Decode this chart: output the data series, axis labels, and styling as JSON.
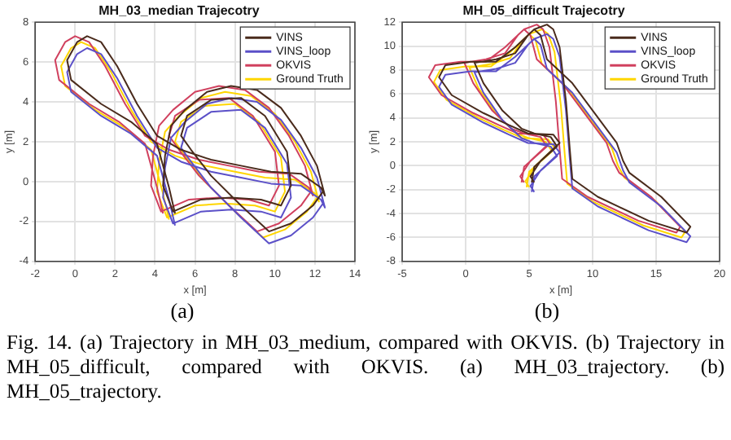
{
  "chart_data": [
    {
      "type": "line",
      "title": "MH_03_median Trajecotry",
      "xlabel": "x [m]",
      "ylabel": "y [m]",
      "xlim": [
        -2,
        14
      ],
      "xticks": [
        -2,
        0,
        2,
        4,
        6,
        8,
        10,
        12,
        14
      ],
      "ylim": [
        -4,
        8
      ],
      "yticks": [
        -4,
        -2,
        0,
        2,
        4,
        6,
        8
      ],
      "grid": true,
      "legend": "top right",
      "marker": "none",
      "line_style": "solid",
      "annotations": [
        "(a)",
        "Fig. 14.    (a) Trajectory in MH_03_medium, compared with OKVIS. (b) Trajectory in MH_05_difficult, compared with OKVIS. (a) MH_03_trajectory. (b) MH_05_trajectory."
      ],
      "series": [
        {
          "name": "VINS",
          "color": "#4a2b1c",
          "x": [
            5.0,
            4.7,
            4.1,
            2.8,
            1.3,
            -0.2,
            -0.4,
            0.1,
            0.6,
            1.3,
            2.1,
            3.1,
            4.1,
            5.3,
            6.8,
            8.3,
            9.8,
            11.3,
            12.3,
            12.5,
            12.1,
            11.3,
            10.3,
            9.1,
            7.8,
            6.6,
            5.5,
            4.8,
            4.5,
            4.4,
            4.9,
            6.3,
            7.8,
            9.3,
            10.3,
            10.8,
            10.6,
            9.5,
            8.3,
            6.8,
            5.6,
            5.3,
            5.8,
            6.8,
            8.3,
            9.7,
            10.8,
            11.9,
            12.4
          ],
          "values": [
            -1.6,
            -0.3,
            1.9,
            3.0,
            3.9,
            5.1,
            6.1,
            7.0,
            7.3,
            7.0,
            5.8,
            3.9,
            2.3,
            1.6,
            1.1,
            0.8,
            0.5,
            0.4,
            -0.3,
            -0.7,
            0.8,
            2.3,
            3.7,
            4.6,
            4.8,
            4.5,
            3.6,
            2.8,
            1.3,
            -0.2,
            -1.5,
            -0.9,
            -0.8,
            -0.9,
            -1.2,
            -0.2,
            1.5,
            3.3,
            4.2,
            4.1,
            3.3,
            2.3,
            1.6,
            0.3,
            -1.2,
            -2.5,
            -2.1,
            -1.2,
            -0.5
          ]
        },
        {
          "name": "VINS_loop",
          "color": "#5b50c8",
          "x": [
            5.0,
            4.7,
            4.1,
            2.8,
            1.3,
            -0.2,
            -0.4,
            0.1,
            0.6,
            1.3,
            2.1,
            3.1,
            4.1,
            5.3,
            6.8,
            8.3,
            9.8,
            11.3,
            12.3,
            12.5,
            12.1,
            11.3,
            10.3,
            9.1,
            7.8,
            6.6,
            5.5,
            4.8,
            4.5,
            4.4,
            4.9,
            6.3,
            7.8,
            9.3,
            10.3,
            10.8,
            10.6,
            9.5,
            8.3,
            6.8,
            5.6,
            5.3,
            5.8,
            6.8,
            8.3,
            9.7,
            10.8,
            11.9,
            12.4
          ],
          "values": [
            -2.2,
            -0.9,
            1.3,
            2.4,
            3.3,
            4.5,
            5.5,
            6.4,
            6.7,
            6.4,
            5.2,
            3.3,
            1.7,
            1.0,
            0.5,
            0.2,
            -0.1,
            -0.2,
            -0.9,
            -1.3,
            0.2,
            1.7,
            3.1,
            4.0,
            4.2,
            3.9,
            3.0,
            2.2,
            0.7,
            -0.8,
            -2.1,
            -1.5,
            -1.4,
            -1.5,
            -1.8,
            -0.8,
            0.9,
            2.7,
            3.6,
            3.5,
            2.7,
            1.7,
            1.0,
            -0.3,
            -1.8,
            -3.1,
            -2.7,
            -1.8,
            -1.1
          ]
        },
        {
          "name": "OKVIS",
          "color": "#d0405e",
          "x": [
            4.4,
            4.1,
            3.5,
            2.2,
            0.7,
            -0.8,
            -1.0,
            -0.5,
            0.0,
            0.7,
            1.5,
            2.5,
            3.5,
            4.7,
            6.2,
            7.7,
            9.2,
            10.7,
            11.7,
            11.9,
            11.5,
            10.7,
            9.7,
            8.5,
            7.2,
            6.0,
            4.9,
            4.2,
            3.9,
            3.8,
            4.3,
            5.7,
            7.2,
            8.7,
            9.7,
            10.2,
            10.0,
            8.9,
            7.7,
            6.2,
            5.0,
            4.7,
            5.2,
            6.2,
            7.7,
            9.1,
            10.2,
            11.3,
            11.8
          ],
          "values": [
            -1.6,
            -0.3,
            1.9,
            3.0,
            3.9,
            5.1,
            6.1,
            7.0,
            7.3,
            7.0,
            5.8,
            3.9,
            2.3,
            1.6,
            1.1,
            0.8,
            0.5,
            0.4,
            -0.3,
            -0.7,
            0.8,
            2.3,
            3.7,
            4.6,
            4.8,
            4.5,
            3.6,
            2.8,
            1.3,
            -0.2,
            -1.5,
            -0.9,
            -0.8,
            -0.9,
            -1.2,
            -0.2,
            1.5,
            3.3,
            4.2,
            4.1,
            3.3,
            2.3,
            1.6,
            0.3,
            -1.2,
            -2.5,
            -2.1,
            -1.2,
            -0.5
          ]
        },
        {
          "name": "Ground Truth",
          "color": "#ffd600",
          "x": [
            4.7,
            4.4,
            3.8,
            2.5,
            1.0,
            -0.5,
            -0.7,
            -0.2,
            0.3,
            1.0,
            1.8,
            2.8,
            3.8,
            5.0,
            6.5,
            8.0,
            9.5,
            11.0,
            12.0,
            12.2,
            11.8,
            11.0,
            10.0,
            8.8,
            7.5,
            6.3,
            5.2,
            4.5,
            4.2,
            4.1,
            4.6,
            6.0,
            7.5,
            9.0,
            10.0,
            10.5,
            10.3,
            9.2,
            8.0,
            6.5,
            5.3,
            5.0,
            5.5,
            6.5,
            8.0,
            9.4,
            10.5,
            11.6,
            12.1
          ],
          "values": [
            -1.9,
            -0.6,
            1.6,
            2.7,
            3.6,
            4.8,
            5.8,
            6.7,
            7.0,
            6.7,
            5.5,
            3.6,
            2.0,
            1.3,
            0.8,
            0.5,
            0.2,
            0.1,
            -0.6,
            -1.0,
            0.5,
            2.0,
            3.4,
            4.3,
            4.5,
            4.2,
            3.3,
            2.5,
            1.0,
            -0.5,
            -1.8,
            -1.2,
            -1.1,
            -1.2,
            -1.5,
            -0.5,
            1.2,
            3.0,
            3.9,
            3.8,
            3.0,
            2.0,
            1.3,
            0.0,
            -1.5,
            -2.8,
            -2.4,
            -1.5,
            -0.8
          ]
        }
      ]
    },
    {
      "type": "line",
      "title": "MH_05_difficult Trajecotry",
      "xlabel": "x [m]",
      "ylabel": "y [m]",
      "xlim": [
        -5,
        20
      ],
      "xticks": [
        -5,
        0,
        5,
        10,
        15,
        20
      ],
      "ylim": [
        -8,
        12
      ],
      "yticks": [
        -8,
        -6,
        -4,
        -2,
        0,
        2,
        4,
        6,
        8,
        10,
        12
      ],
      "grid": true,
      "legend": "top right",
      "marker": "none",
      "line_style": "solid",
      "annotations": [
        "(b)"
      ],
      "series": [
        {
          "name": "VINS",
          "color": "#4a2b1c",
          "x": [
            5.4,
            5.1,
            5.9,
            7.4,
            6.9,
            4.9,
            3.4,
            1.4,
            -1.1,
            -2.1,
            -1.6,
            0.4,
            2.4,
            3.9,
            5.4,
            6.4,
            6.9,
            7.4,
            7.9,
            8.2,
            8.4,
            10.4,
            14.4,
            17.4,
            17.7,
            15.4,
            12.9,
            12.4,
            11.9,
            8.4,
            6.4,
            5.9,
            5.4,
            4.9,
            3.9,
            2.4,
            0.7,
            1.4,
            2.9,
            4.4,
            5.4,
            6.7,
            7.2,
            5.4,
            5.2
          ],
          "values": [
            -1.4,
            -0.9,
            0.4,
            1.9,
            2.6,
            2.7,
            3.4,
            4.4,
            5.9,
            7.4,
            8.4,
            8.7,
            8.7,
            9.9,
            11.4,
            11.8,
            11.4,
            9.9,
            5.4,
            1.4,
            -1.1,
            -2.6,
            -4.6,
            -5.6,
            -5.1,
            -2.6,
            -0.6,
            0.4,
            1.9,
            6.9,
            8.9,
            10.9,
            11.4,
            10.9,
            9.4,
            8.9,
            8.6,
            6.9,
            4.6,
            3.1,
            2.7,
            2.4,
            1.6,
            -0.1,
            -1.4
          ]
        },
        {
          "name": "VINS_loop",
          "color": "#5b50c8",
          "x": [
            5.4,
            5.1,
            5.9,
            7.4,
            6.9,
            4.9,
            3.4,
            1.4,
            -1.1,
            -2.1,
            -1.6,
            0.4,
            2.4,
            3.9,
            5.4,
            6.4,
            6.9,
            7.4,
            7.9,
            8.2,
            8.4,
            10.4,
            14.4,
            17.4,
            17.7,
            15.4,
            12.9,
            12.4,
            11.9,
            8.4,
            6.4,
            5.9,
            5.4,
            4.9,
            3.9,
            2.4,
            0.7,
            1.4,
            2.9,
            4.4,
            5.4,
            6.7,
            7.2,
            5.4,
            5.2
          ],
          "values": [
            -2.2,
            -1.7,
            -0.4,
            1.1,
            1.8,
            1.9,
            2.6,
            3.6,
            5.1,
            6.6,
            7.6,
            7.9,
            7.9,
            9.1,
            10.6,
            11.0,
            10.6,
            9.1,
            4.6,
            0.6,
            -1.9,
            -3.4,
            -5.4,
            -6.4,
            -5.9,
            -3.4,
            -1.4,
            -0.4,
            1.1,
            6.1,
            8.1,
            10.1,
            10.6,
            10.1,
            8.6,
            8.1,
            7.8,
            6.1,
            3.8,
            2.3,
            1.9,
            1.6,
            0.8,
            -0.9,
            -2.2
          ]
        },
        {
          "name": "OKVIS",
          "color": "#d0405e",
          "x": [
            4.6,
            4.3,
            5.1,
            6.6,
            6.1,
            4.1,
            2.6,
            0.6,
            -1.9,
            -2.9,
            -2.4,
            -0.4,
            1.6,
            3.1,
            4.6,
            5.6,
            6.1,
            6.6,
            7.1,
            7.4,
            7.6,
            9.6,
            13.6,
            16.6,
            16.9,
            14.6,
            12.1,
            11.6,
            11.1,
            7.6,
            5.6,
            5.1,
            4.6,
            4.1,
            3.1,
            1.6,
            -0.1,
            0.6,
            2.1,
            3.6,
            4.6,
            5.9,
            6.4,
            4.6,
            4.4
          ],
          "values": [
            -1.4,
            -0.9,
            0.4,
            1.9,
            2.6,
            2.7,
            3.4,
            4.4,
            5.9,
            7.4,
            8.4,
            8.7,
            8.7,
            9.9,
            11.4,
            11.8,
            11.4,
            9.9,
            5.4,
            1.4,
            -1.1,
            -2.6,
            -4.6,
            -5.6,
            -5.1,
            -2.6,
            -0.6,
            0.4,
            1.9,
            6.9,
            8.9,
            10.9,
            11.4,
            10.9,
            9.4,
            8.9,
            8.6,
            6.9,
            4.6,
            3.1,
            2.7,
            2.4,
            1.6,
            -0.1,
            -1.4
          ]
        },
        {
          "name": "Ground Truth",
          "color": "#ffd600",
          "x": [
            5,
            4.7,
            5.5,
            7,
            6.5,
            4.5,
            3,
            1,
            -1.5,
            -2.5,
            -2,
            0,
            2,
            3.5,
            5,
            6,
            6.5,
            7,
            7.5,
            7.8,
            8,
            10,
            14,
            17,
            17.3,
            15,
            12.5,
            12,
            11.5,
            8,
            6,
            5.5,
            5,
            4.5,
            3.5,
            2,
            0.3,
            1,
            2.5,
            4,
            5,
            6.3,
            6.8,
            5,
            4.8
          ],
          "values": [
            -1.8,
            -1.3,
            0,
            1.5,
            2.2,
            2.3,
            3,
            4,
            5.5,
            7,
            8,
            8.3,
            8.3,
            9.5,
            11,
            11.4,
            11,
            9.5,
            5,
            1,
            -1.5,
            -3,
            -5,
            -6,
            -5.5,
            -3,
            -1,
            0,
            1.5,
            6.5,
            8.5,
            10.5,
            11,
            10.5,
            9,
            8.5,
            8.2,
            6.5,
            4.2,
            2.7,
            2.3,
            2,
            1.2,
            -0.5,
            -1.8
          ]
        }
      ]
    }
  ]
}
